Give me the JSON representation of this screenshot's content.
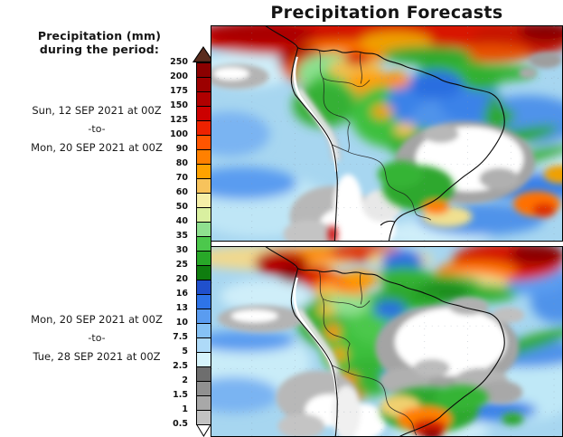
{
  "title": "Precipitation Forecasts",
  "legend": {
    "heading_line1": "Precipitation (mm)",
    "heading_line2": "during the period:",
    "scale_labels": [
      "250",
      "200",
      "175",
      "150",
      "125",
      "100",
      "90",
      "80",
      "70",
      "60",
      "50",
      "40",
      "35",
      "30",
      "25",
      "20",
      "16",
      "13",
      "10",
      "7.5",
      "5",
      "2.5",
      "2",
      "1.5",
      "1",
      "0.5"
    ],
    "band_colors_top_to_bottom": [
      "#8b0000",
      "#9c0000",
      "#b00000",
      "#cc0000",
      "#ee2200",
      "#ff5500",
      "#ff8000",
      "#ffa200",
      "#f7c35c",
      "#f5efa8",
      "#d9f0a0",
      "#8fe08f",
      "#4cc84c",
      "#28a828",
      "#0f7d0f",
      "#2050cc",
      "#2e74e8",
      "#5a9cf0",
      "#86c2f5",
      "#aedaf8",
      "#d6f3fb",
      "#6e6e6e",
      "#909090",
      "#a8a8a8",
      "#c2c2c2"
    ],
    "over_max_color": "#5a2c1e",
    "under_min_color": "#ffffff"
  },
  "panels": [
    {
      "name": "forecast-week-1",
      "period_start": "Sun, 12 SEP 2021 at 00Z",
      "period_connector": "-to-",
      "period_end": "Mon, 20 SEP 2021 at 00Z"
    },
    {
      "name": "forecast-week-2",
      "period_start": "Mon, 20 SEP 2021 at 00Z",
      "period_connector": "-to-",
      "period_end": "Tue, 28 SEP 2021 at 00Z"
    }
  ]
}
